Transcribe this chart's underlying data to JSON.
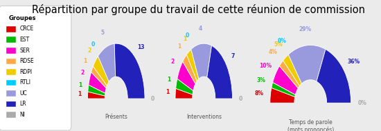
{
  "title": "Répartition par groupe du travail de cette réunion de commission",
  "background_color": "#ebebeb",
  "legend_title": "Groupes",
  "groups": [
    "CRCE",
    "EST",
    "SER",
    "RDSE",
    "RDPI",
    "RTLI",
    "UC",
    "LR",
    "NI"
  ],
  "colors": [
    "#dd0000",
    "#00bb00",
    "#ff00cc",
    "#ffaa44",
    "#eecc00",
    "#00ccff",
    "#9999dd",
    "#2222bb",
    "#aaaaaa"
  ],
  "presentes": [
    1,
    1,
    2,
    1,
    2,
    0,
    5,
    13,
    0
  ],
  "interventions": [
    1,
    1,
    2,
    1,
    1,
    0,
    4,
    7,
    0
  ],
  "temps_parole": [
    8,
    3,
    10,
    4,
    5,
    0,
    29,
    36,
    0
  ],
  "chart_titles": [
    "Présents",
    "Interventions",
    "Temps de parole\n(mots prononcés)"
  ],
  "title_fontsize": 10.5,
  "label_fontsize": 5.5,
  "legend_fontsize": 6.0
}
